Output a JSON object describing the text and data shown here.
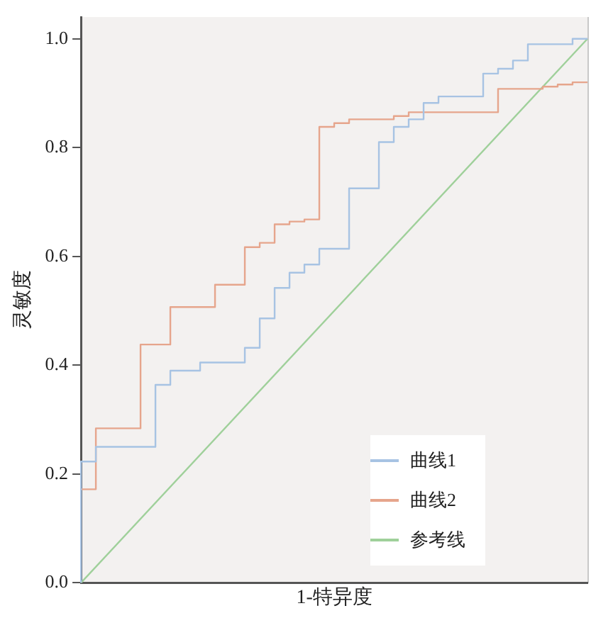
{
  "chart_data": {
    "type": "line",
    "xlabel": "1-特异度",
    "ylabel": "灵敏度",
    "categories": [
      null,
      null,
      null,
      null,
      null,
      null,
      null,
      null,
      null,
      null,
      null,
      null,
      null,
      null,
      null,
      null,
      null,
      null,
      null,
      null,
      null,
      null,
      null,
      null,
      null,
      null,
      null,
      null,
      null,
      null,
      null,
      null,
      null,
      null,
      null
    ],
    "ylim": [
      0,
      1.04
    ],
    "yticks": [
      {
        "value": 0,
        "label": "0.0"
      },
      {
        "value": 0.2,
        "label": "0.2"
      },
      {
        "value": 0.4,
        "label": "0.4"
      },
      {
        "value": 0.6,
        "label": "0.6"
      },
      {
        "value": 0.8,
        "label": "0.8"
      },
      {
        "value": 1,
        "label": "1.0"
      }
    ],
    "tick_labels": "y",
    "grid": false,
    "legend": "bottom right",
    "marker": "none",
    "line_style": "solid",
    "series": [
      {
        "name": "曲线1",
        "type": "step",
        "color": "#a7c3e3",
        "values": [
          0,
          0.223,
          0.25,
          0.25,
          0.25,
          0.25,
          0.364,
          0.39,
          0.39,
          0.405,
          0.405,
          0.405,
          0.432,
          0.486,
          0.542,
          0.57,
          0.585,
          0.614,
          0.614,
          0.725,
          0.725,
          0.81,
          0.838,
          0.852,
          0.882,
          0.894,
          0.894,
          0.894,
          0.936,
          0.945,
          0.96,
          0.99,
          0.99,
          0.99,
          1
        ]
      },
      {
        "name": "曲线2",
        "type": "step",
        "color": "#e6a58c",
        "values": [
          0.172,
          0.172,
          0.284,
          0.284,
          0.284,
          0.438,
          0.438,
          0.507,
          0.507,
          0.507,
          0.548,
          0.548,
          0.617,
          0.625,
          0.659,
          0.664,
          0.668,
          0.838,
          0.845,
          0.852,
          0.852,
          0.852,
          0.858,
          0.865,
          0.865,
          0.865,
          0.865,
          0.865,
          0.865,
          0.908,
          0.908,
          0.908,
          0.912,
          0.916,
          0.92
        ]
      },
      {
        "name": "参考线",
        "type": "line",
        "color": "#9fd09a",
        "values": [
          0,
          null,
          null,
          null,
          null,
          null,
          null,
          null,
          null,
          null,
          null,
          null,
          null,
          null,
          null,
          null,
          null,
          null,
          null,
          null,
          null,
          null,
          null,
          null,
          null,
          null,
          null,
          null,
          null,
          null,
          null,
          null,
          null,
          null,
          1
        ]
      }
    ]
  }
}
